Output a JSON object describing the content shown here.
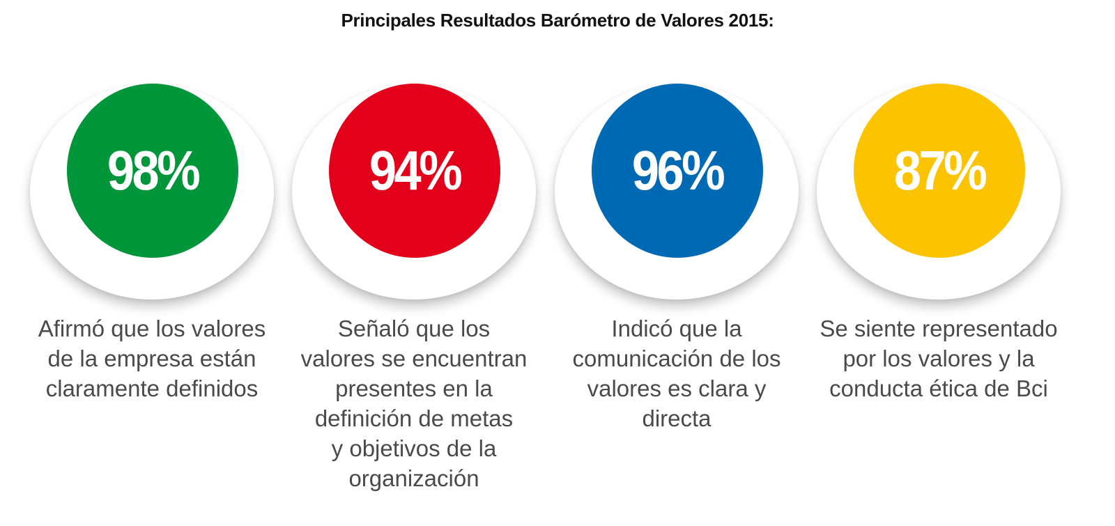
{
  "title": "Principales Resultados Barómetro de Valores 2015:",
  "stats": [
    {
      "value": "98%",
      "color": "#009639",
      "lines": [
        "Afirmó que los valores",
        "de la empresa están",
        "claramente definidos"
      ]
    },
    {
      "value": "94%",
      "color": "#e2001a",
      "lines": [
        "Señaló que los",
        "valores se encuentran",
        "presentes en la",
        "definición de metas",
        "y objetivos de la",
        "organización"
      ]
    },
    {
      "value": "96%",
      "color": "#0069b4",
      "lines": [
        "Indicó que la",
        "comunicación de los",
        "valores es clara y",
        "directa"
      ]
    },
    {
      "value": "87%",
      "color": "#fcc300",
      "lines": [
        "Se siente representado",
        "por los valores y la",
        "conducta ética de Bci"
      ]
    }
  ]
}
